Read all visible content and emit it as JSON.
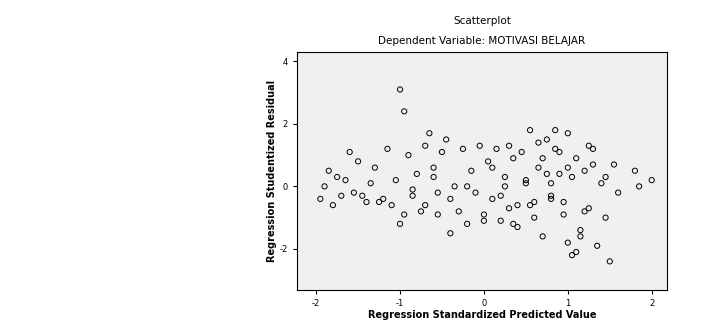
{
  "chart_data": {
    "type": "scatter",
    "title": "Scatterplot",
    "subtitle": "Dependent Variable: MOTIVASI BELAJAR",
    "x_label": "Regression Standardized Predicted Value",
    "y_label": "Regression Studentized Residual",
    "x": [
      -1.0,
      -0.95,
      -1.6,
      -1.3,
      -1.9,
      -1.85,
      -1.75,
      -1.7,
      -1.55,
      -1.5,
      -1.4,
      -1.35,
      -1.2,
      -1.15,
      -1.1,
      -1.05,
      -0.9,
      -0.85,
      -0.8,
      -0.75,
      -0.7,
      -0.65,
      -0.6,
      -0.55,
      -0.5,
      -1.95,
      -1.8,
      -1.65,
      -1.45,
      -1.25,
      -1.0,
      -0.95,
      -0.85,
      -0.7,
      -0.6,
      -0.45,
      -0.4,
      -0.35,
      -0.3,
      -0.25,
      -0.2,
      -0.15,
      -0.1,
      -0.05,
      0.0,
      0.05,
      0.1,
      0.15,
      0.2,
      0.25,
      0.3,
      0.35,
      0.4,
      0.45,
      0.5,
      0.55,
      0.6,
      0.65,
      0.7,
      0.75,
      0.8,
      0.85,
      0.9,
      0.95,
      1.0,
      1.05,
      1.1,
      1.15,
      1.2,
      1.25,
      1.3,
      1.35,
      1.4,
      1.45,
      1.5,
      1.55,
      1.6,
      1.8,
      1.85,
      2.0,
      0.1,
      0.2,
      0.3,
      0.4,
      0.5,
      0.6,
      0.7,
      0.8,
      0.9,
      1.0,
      1.05,
      1.1,
      1.2,
      1.3,
      1.45,
      0.35,
      0.55,
      0.75,
      0.85,
      0.95,
      1.15,
      1.25,
      -0.55,
      -0.4,
      -0.2,
      0.0,
      0.25,
      0.65,
      0.8,
      1.0
    ],
    "values": [
      3.1,
      2.4,
      1.1,
      0.6,
      0.0,
      0.5,
      0.3,
      -0.3,
      -0.2,
      0.8,
      -0.5,
      0.1,
      -0.4,
      1.2,
      -0.6,
      0.2,
      1.0,
      -0.1,
      0.4,
      -0.8,
      1.3,
      1.7,
      0.3,
      -0.2,
      1.1,
      -0.4,
      -0.6,
      0.2,
      -0.3,
      -0.5,
      -1.2,
      -0.9,
      -0.3,
      -0.6,
      0.6,
      1.5,
      -1.5,
      0.0,
      -0.8,
      1.2,
      -1.2,
      0.5,
      -0.2,
      1.3,
      -0.9,
      0.8,
      -0.4,
      1.2,
      -1.1,
      0.3,
      -0.7,
      0.9,
      -1.3,
      1.1,
      0.2,
      1.8,
      -0.5,
      0.6,
      -1.6,
      1.5,
      -0.3,
      1.8,
      0.4,
      -0.9,
      1.7,
      -2.2,
      0.9,
      -1.4,
      0.5,
      -0.7,
      1.2,
      -1.9,
      0.1,
      0.3,
      -2.4,
      0.7,
      -0.2,
      0.5,
      0.0,
      0.2,
      0.6,
      -0.3,
      1.3,
      -0.6,
      0.1,
      -1.0,
      0.9,
      -0.4,
      1.1,
      -1.8,
      0.3,
      -2.1,
      -0.8,
      0.7,
      -1.0,
      -1.2,
      -0.6,
      0.4,
      1.2,
      -0.5,
      -1.6,
      1.3,
      -0.9,
      -0.4,
      0.0,
      -1.1,
      0.0,
      1.4,
      0.1,
      0.6
    ],
    "xlim": [
      -2.23,
      2.18
    ],
    "ylim": [
      -3.3,
      4.3
    ],
    "xticks": [
      -2,
      -1,
      0,
      1,
      2
    ],
    "yticks": [
      -2,
      0,
      2,
      4
    ],
    "marker": "o",
    "color": "#000000"
  }
}
